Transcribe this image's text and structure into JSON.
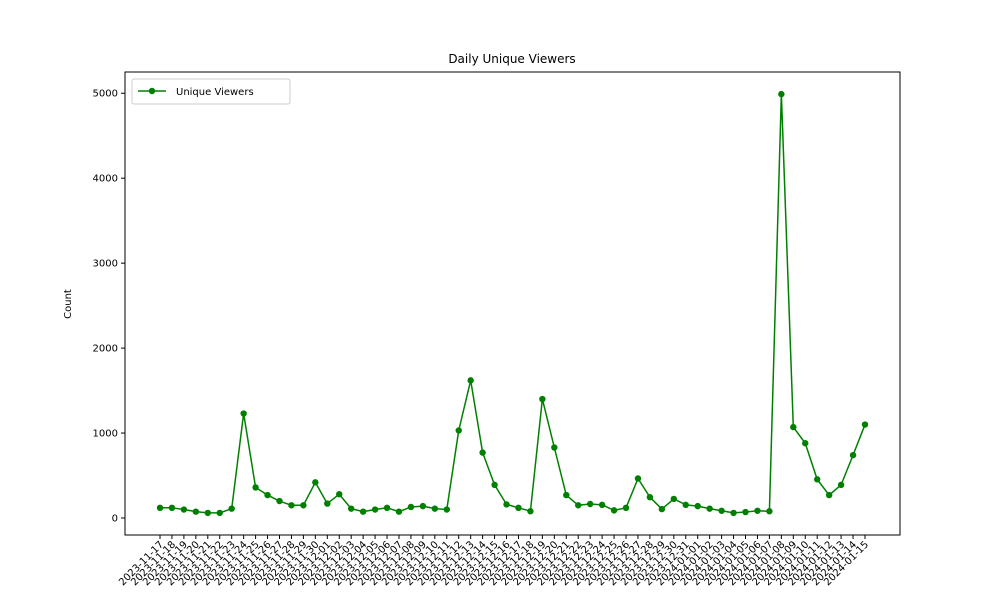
{
  "chart_data": {
    "type": "line",
    "title": "Daily Unique Viewers",
    "xlabel": "",
    "ylabel": "Count",
    "ylim": [
      -200,
      5250
    ],
    "yticks": [
      0,
      1000,
      2000,
      3000,
      4000,
      5000
    ],
    "grid": false,
    "legend_position": "top-left",
    "color": "#008000",
    "marker": "circle",
    "x": [
      "2023-11-17",
      "2023-11-18",
      "2023-11-19",
      "2023-11-20",
      "2023-11-21",
      "2023-11-22",
      "2023-11-23",
      "2023-11-24",
      "2023-11-25",
      "2023-11-26",
      "2023-11-27",
      "2023-11-28",
      "2023-11-29",
      "2023-11-30",
      "2023-12-01",
      "2023-12-02",
      "2023-12-03",
      "2023-12-04",
      "2023-12-05",
      "2023-12-06",
      "2023-12-07",
      "2023-12-08",
      "2023-12-09",
      "2023-12-10",
      "2023-12-11",
      "2023-12-12",
      "2023-12-13",
      "2023-12-14",
      "2023-12-15",
      "2023-12-16",
      "2023-12-17",
      "2023-12-18",
      "2023-12-19",
      "2023-12-20",
      "2023-12-21",
      "2023-12-22",
      "2023-12-23",
      "2023-12-24",
      "2023-12-25",
      "2023-12-26",
      "2023-12-27",
      "2023-12-28",
      "2023-12-29",
      "2023-12-30",
      "2023-12-31",
      "2024-01-01",
      "2024-01-02",
      "2024-01-03",
      "2024-01-04",
      "2024-01-05",
      "2024-01-06",
      "2024-01-07",
      "2024-01-08",
      "2024-01-09",
      "2024-01-10",
      "2024-01-11",
      "2024-01-12",
      "2024-01-13",
      "2024-01-14",
      "2024-01-15"
    ],
    "series": [
      {
        "name": "Unique Viewers",
        "values": [
          120,
          120,
          100,
          75,
          60,
          60,
          110,
          1230,
          360,
          270,
          200,
          150,
          150,
          420,
          170,
          280,
          110,
          75,
          100,
          120,
          75,
          130,
          140,
          110,
          100,
          1030,
          1620,
          770,
          390,
          160,
          120,
          80,
          1400,
          830,
          270,
          150,
          165,
          155,
          90,
          120,
          465,
          245,
          105,
          225,
          155,
          140,
          110,
          85,
          60,
          70,
          85,
          80,
          4990,
          1070,
          880,
          455,
          270,
          390,
          740,
          1100
        ]
      }
    ]
  }
}
